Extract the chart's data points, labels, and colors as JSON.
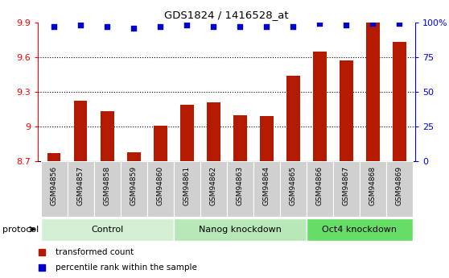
{
  "title": "GDS1824 / 1416528_at",
  "samples": [
    "GSM94856",
    "GSM94857",
    "GSM94858",
    "GSM94859",
    "GSM94860",
    "GSM94861",
    "GSM94862",
    "GSM94863",
    "GSM94864",
    "GSM94865",
    "GSM94866",
    "GSM94867",
    "GSM94868",
    "GSM94869"
  ],
  "bar_values": [
    8.77,
    9.22,
    9.13,
    8.78,
    9.01,
    9.19,
    9.21,
    9.1,
    9.09,
    9.44,
    9.65,
    9.57,
    9.9,
    9.73
  ],
  "dot_values": [
    97,
    98,
    97,
    96,
    97,
    98,
    97,
    97,
    97,
    97,
    99,
    98,
    99,
    99
  ],
  "bar_color": "#b31a00",
  "dot_color": "#0000cc",
  "ylim_left": [
    8.7,
    9.9
  ],
  "ylim_right": [
    0,
    100
  ],
  "yticks_left": [
    8.7,
    9.0,
    9.3,
    9.6,
    9.9
  ],
  "ytick_labels_left": [
    "8.7",
    "9",
    "9.3",
    "9.6",
    "9.9"
  ],
  "yticks_right": [
    0,
    25,
    50,
    75,
    100
  ],
  "ytick_labels_right": [
    "0",
    "25",
    "50",
    "75",
    "100%"
  ],
  "grid_values": [
    9.0,
    9.3,
    9.6
  ],
  "groups": [
    {
      "label": "Control",
      "start": 0,
      "end": 5,
      "color": "#d4f0d4"
    },
    {
      "label": "Nanog knockdown",
      "start": 5,
      "end": 10,
      "color": "#b8e8b8"
    },
    {
      "label": "Oct4 knockdown",
      "start": 10,
      "end": 14,
      "color": "#66dd66"
    }
  ],
  "protocol_label": "protocol",
  "legend": [
    {
      "label": "transformed count",
      "color": "#b31a00",
      "marker": "s"
    },
    {
      "label": "percentile rank within the sample",
      "color": "#0000cc",
      "marker": "s"
    }
  ],
  "plot_bg": "#ffffff",
  "xtick_bg": "#d0d0d0",
  "xtick_border": "#ffffff"
}
